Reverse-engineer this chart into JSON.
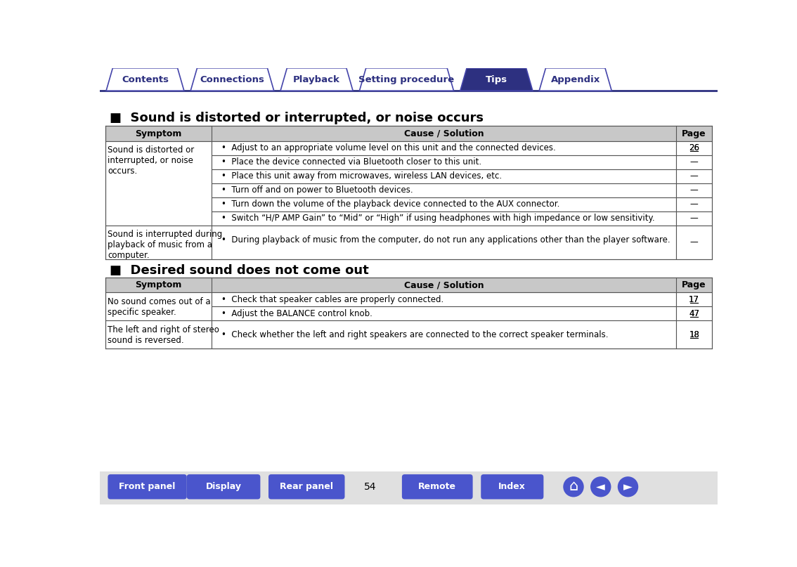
{
  "bg_color": "#ffffff",
  "nav_tabs": [
    "Contents",
    "Connections",
    "Playback",
    "Setting procedure",
    "Tips",
    "Appendix"
  ],
  "nav_active": 4,
  "nav_bg_inactive": "#ffffff",
  "nav_bg_active": "#2d3080",
  "nav_text_inactive": "#2d3080",
  "nav_text_active": "#ffffff",
  "nav_border": "#4444aa",
  "nav_line_color": "#2d3080",
  "section1_title": "■  Sound is distorted or interrupted, or noise occurs",
  "section2_title": "■  Desired sound does not come out",
  "header_bg": "#c8c8c8",
  "header_text": "#000000",
  "table_border": "#555555",
  "row_bg_white": "#ffffff",
  "table1_symptom1": "Sound is distorted or\ninterrupted, or noise\noccurs.",
  "table1_rows": [
    [
      "Adjust to an appropriate volume level on this unit and the connected devices.",
      "26"
    ],
    [
      "Place the device connected via Bluetooth closer to this unit.",
      "—"
    ],
    [
      "Place this unit away from microwaves, wireless LAN devices, etc.",
      "—"
    ],
    [
      "Turn off and on power to Bluetooth devices.",
      "—"
    ],
    [
      "Turn down the volume of the playback device connected to the AUX connector.",
      "—"
    ],
    [
      "Switch “H/P AMP Gain” to “Mid” or “High” if using headphones with high impedance or low sensitivity.",
      "—"
    ]
  ],
  "table1_symptom2": "Sound is interrupted during\nplayback of music from a\ncomputer.",
  "table1_row2": [
    "During playback of music from the computer, do not run any applications other than the player software.",
    "—"
  ],
  "table2_symptom1": "No sound comes out of a\nspecific speaker.",
  "table2_rows1": [
    [
      "Check that speaker cables are properly connected.",
      "17"
    ],
    [
      "Adjust the BALANCE control knob.",
      "47"
    ]
  ],
  "table2_symptom2": "The left and right of stereo\nsound is reversed.",
  "table2_rows2": [
    [
      "Check whether the left and right speakers are connected to the correct speaker terminals.",
      "18"
    ]
  ],
  "bottom_buttons": [
    "Front panel",
    "Display",
    "Rear panel",
    "Remote",
    "Index"
  ],
  "bottom_page": "54",
  "btn_color": "#4a55cc",
  "title_color": "#000000",
  "section_title_size": 13,
  "table_text_size": 8.5
}
